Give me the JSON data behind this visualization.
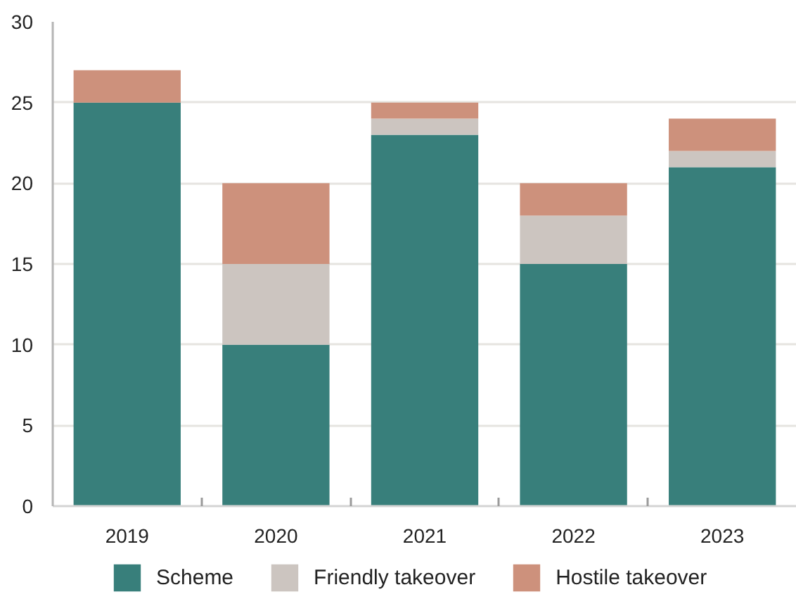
{
  "chart_data": {
    "type": "bar",
    "stacked": true,
    "categories": [
      "2019",
      "2020",
      "2021",
      "2022",
      "2023"
    ],
    "series": [
      {
        "name": "Scheme",
        "color": "#387f7b",
        "values": [
          25,
          10,
          23,
          15,
          21
        ]
      },
      {
        "name": "Friendly takeover",
        "color": "#ccc5c0",
        "values": [
          0,
          5,
          1,
          3,
          1
        ]
      },
      {
        "name": "Hostile takeover",
        "color": "#cd917c",
        "values": [
          2,
          5,
          1,
          2,
          2
        ]
      }
    ],
    "ylim": [
      0,
      30
    ],
    "yticks": [
      0,
      5,
      10,
      15,
      20,
      25,
      30
    ],
    "grid": "y",
    "legend": "bottom"
  }
}
